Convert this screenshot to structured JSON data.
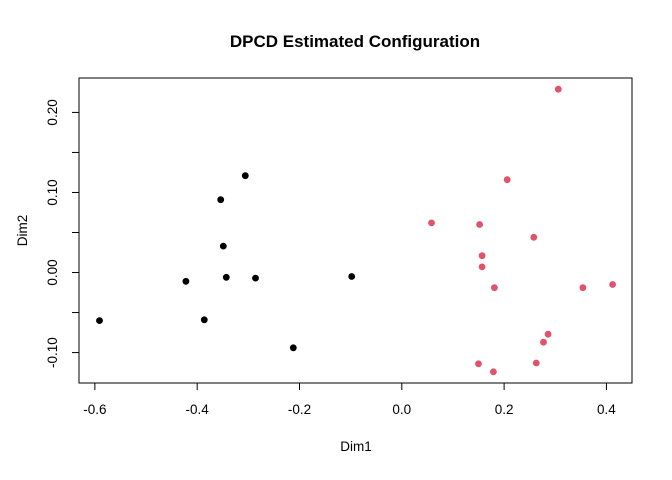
{
  "title": "DPCD Estimated Configuration",
  "axes": {
    "xlabel": "Dim1",
    "ylabel": "Dim2",
    "x_tick_values": [
      -0.6,
      -0.4,
      -0.2,
      0.0,
      0.2,
      0.4
    ],
    "x_tick_labels": [
      "-0.6",
      "-0.4",
      "-0.2",
      "0.0",
      "0.2",
      "0.4"
    ],
    "y_tick_values": [
      -0.1,
      -0.05,
      0.0,
      0.05,
      0.1,
      0.15,
      0.2
    ],
    "y_tick_labels": [
      "-0.10",
      "",
      "0.00",
      "",
      "0.10",
      "",
      "0.20"
    ]
  },
  "chart_data": {
    "type": "scatter",
    "title": "DPCD Estimated Configuration",
    "xlabel": "Dim1",
    "ylabel": "Dim2",
    "xlim": [
      -0.631,
      0.45
    ],
    "ylim": [
      -0.138,
      0.243
    ],
    "grid": false,
    "legend": "none",
    "marker": "filled-circle",
    "marker_radius": 3.4,
    "series": [
      {
        "name": "group-1-black",
        "color": "#000000",
        "points": [
          [
            -0.306,
            0.121
          ],
          [
            -0.354,
            0.091
          ],
          [
            -0.349,
            0.033
          ],
          [
            -0.343,
            -0.006
          ],
          [
            -0.286,
            -0.007
          ],
          [
            -0.422,
            -0.011
          ],
          [
            -0.098,
            -0.005
          ],
          [
            -0.591,
            -0.06
          ],
          [
            -0.386,
            -0.059
          ],
          [
            -0.212,
            -0.094
          ]
        ]
      },
      {
        "name": "group-2-pink",
        "color": "#DF536B",
        "points": [
          [
            0.306,
            0.229
          ],
          [
            0.206,
            0.116
          ],
          [
            0.058,
            0.062
          ],
          [
            0.152,
            0.06
          ],
          [
            0.258,
            0.044
          ],
          [
            0.157,
            0.021
          ],
          [
            0.157,
            0.007
          ],
          [
            0.181,
            -0.019
          ],
          [
            0.354,
            -0.019
          ],
          [
            0.412,
            -0.015
          ],
          [
            0.286,
            -0.077
          ],
          [
            0.277,
            -0.087
          ],
          [
            0.263,
            -0.113
          ],
          [
            0.15,
            -0.114
          ],
          [
            0.179,
            -0.124
          ]
        ]
      }
    ]
  }
}
